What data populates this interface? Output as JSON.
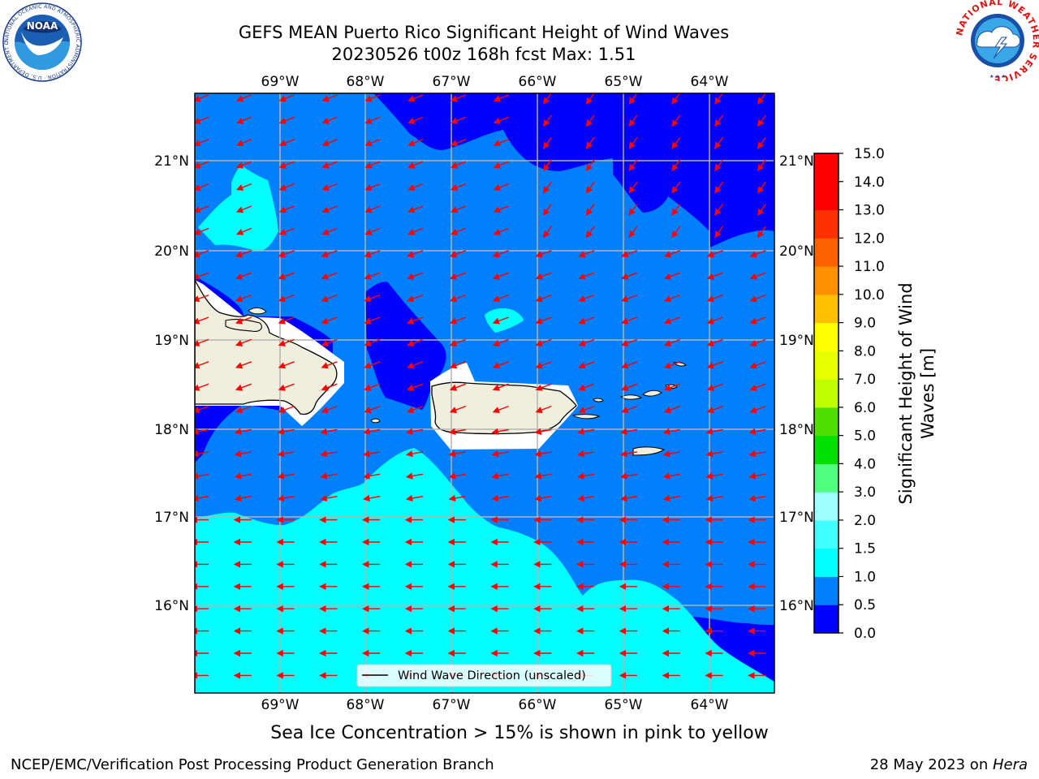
{
  "header": {
    "title_line1": "GEFS MEAN Puerto Rico Significant Height of Wind Waves",
    "title_line2": "20230526 t00z 168h fcst   Max: 1.51"
  },
  "map": {
    "lon_labels": [
      "69°W",
      "68°W",
      "67°W",
      "66°W",
      "65°W",
      "64°W"
    ],
    "lat_labels": [
      "21°N",
      "20°N",
      "19°N",
      "18°N",
      "17°N",
      "16°N"
    ],
    "legend_label": "Wind Wave Direction (unscaled)",
    "colors": {
      "bin_0_0.5": "#0000ff",
      "bin_0.5_1": "#0080ff",
      "bin_1_1.5": "#00ffff",
      "land": "#f0eedc",
      "arrows": "#ff0000",
      "grid": "#b4b4b4"
    }
  },
  "colorbar": {
    "label_line1": "Significant Height of Wind",
    "label_line2": "Waves [m]",
    "ticks": [
      "0.0",
      "0.5",
      "1.0",
      "1.5",
      "2.0",
      "3.0",
      "4.0",
      "5.0",
      "6.0",
      "7.0",
      "8.0",
      "9.0",
      "10.0",
      "11.0",
      "12.0",
      "13.0",
      "14.0",
      "15.0"
    ],
    "colors": [
      "#0000ff",
      "#0080ff",
      "#00ffff",
      "#40ffff",
      "#a0ffff",
      "#50ff80",
      "#00e000",
      "#50e000",
      "#c0ff00",
      "#e8ff00",
      "#ffff00",
      "#ffc000",
      "#ff9000",
      "#ff6000",
      "#ff3000",
      "#ff0000",
      "#ff0000"
    ]
  },
  "logos": {
    "left": {
      "name": "NOAA",
      "ring_text": "NATIONAL OCEANIC AND ATMOSPHERIC ADMINISTRATION · U.S. DEPARTMENT OF COMMERCE"
    },
    "right": {
      "ring_text": "NATIONAL WEATHER SERVICE"
    }
  },
  "footer": {
    "subtitle": "Sea Ice Concentration > 15% is shown in pink to yellow",
    "left": "NCEP/EMC/Verification Post Processing Product Generation Branch",
    "right_date": "28 May 2023 on ",
    "right_host": "Hera"
  }
}
